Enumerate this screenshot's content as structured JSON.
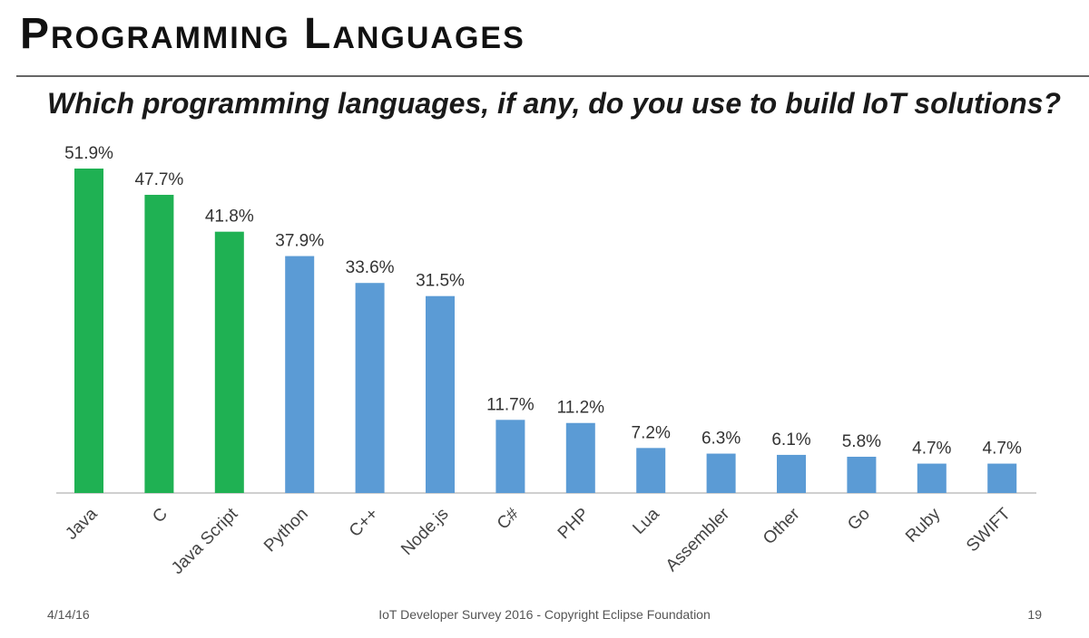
{
  "slide": {
    "title": "Programming Languages",
    "subtitle": "Which programming languages, if any, do you use to build IoT solutions?"
  },
  "footer": {
    "date": "4/14/16",
    "source": "IoT Developer Survey 2016 - Copyright Eclipse Foundation",
    "page_number": "19"
  },
  "colors": {
    "highlight": "#1fb153",
    "default": "#5b9bd5",
    "axis": "#bfbfbf"
  },
  "chart_data": {
    "type": "bar",
    "categories": [
      "Java",
      "C",
      "Java Script",
      "Python",
      "C++",
      "Node.js",
      "C#",
      "PHP",
      "Lua",
      "Assembler",
      "Other",
      "Go",
      "Ruby",
      "SWIFT"
    ],
    "values": [
      51.9,
      47.7,
      41.8,
      37.9,
      33.6,
      31.5,
      11.7,
      11.2,
      7.2,
      6.3,
      6.1,
      5.8,
      4.7,
      4.7
    ],
    "value_labels": [
      "51.9%",
      "47.7%",
      "41.8%",
      "37.9%",
      "33.6%",
      "31.5%",
      "11.7%",
      "11.2%",
      "7.2%",
      "6.3%",
      "6.1%",
      "5.8%",
      "4.7%",
      "4.7%"
    ],
    "highlighted": [
      "Java",
      "C",
      "Java Script"
    ],
    "unit": "%",
    "ylim": [
      0,
      51.9
    ],
    "grid": false,
    "legend": "none"
  }
}
